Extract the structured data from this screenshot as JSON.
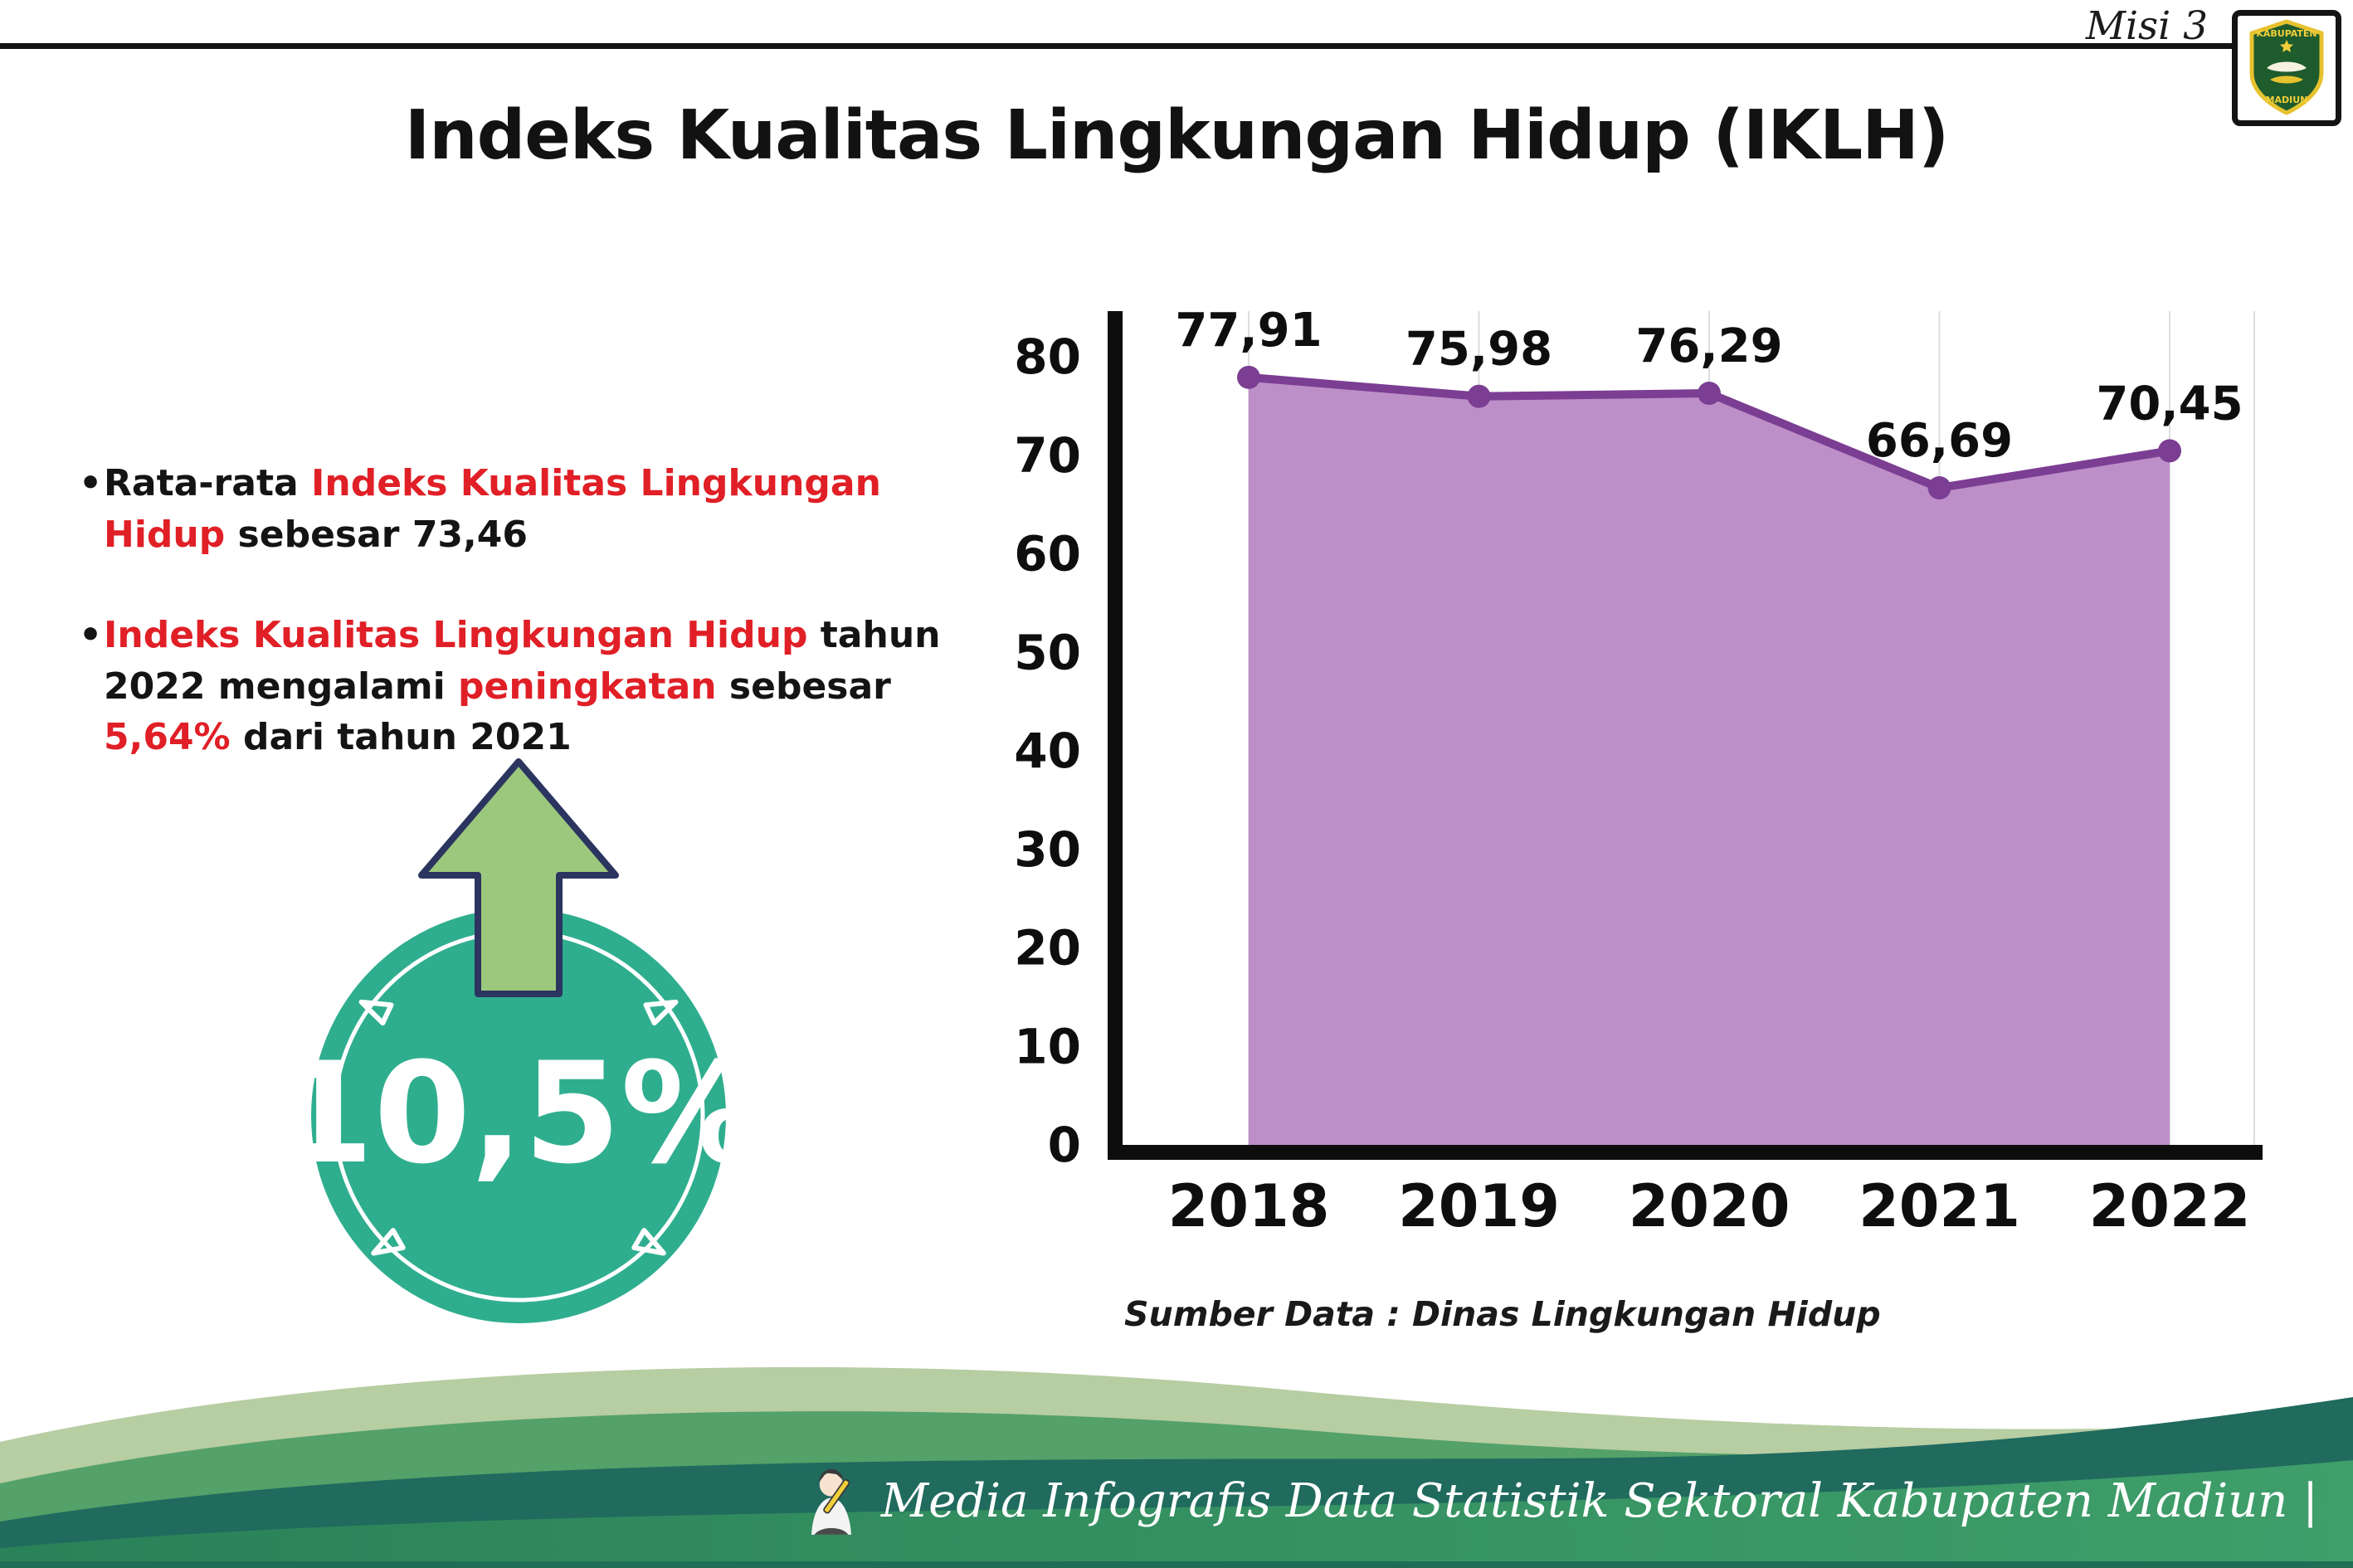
{
  "header": {
    "misi_label": "Misi 3",
    "logo": {
      "region_top": "KABUPATEN",
      "region_bottom": "MADIUN"
    }
  },
  "title": "Indeks Kualitas Lingkungan Hidup (IKLH)",
  "bullets": {
    "first": {
      "pre": "Rata-rata ",
      "highlight": "Indeks Kualitas Lingkungan Hidup",
      "post": " sebesar 73,46"
    },
    "second": {
      "h1": "Indeks Kualitas Lingkungan Hidup",
      "t1": " tahun 2022 mengalami ",
      "h2": "peningkatan",
      "t2": " sebesar ",
      "h3": "5,64%",
      "t3": " dari tahun 2021"
    }
  },
  "badge": {
    "value": "10,5%",
    "icon": "up-arrow-icon",
    "circle_color": "#2fae8f",
    "arrow_color": "#9cc87d"
  },
  "chart_data": {
    "type": "area",
    "title": "Indeks Kualitas Lingkungan Hidup (IKLH)",
    "categories": [
      "2018",
      "2019",
      "2020",
      "2021",
      "2022"
    ],
    "values": [
      77.91,
      75.98,
      76.29,
      66.69,
      70.45
    ],
    "value_labels": [
      "77,91",
      "75,98",
      "76,29",
      "66,69",
      "70,45"
    ],
    "xlabel": "",
    "ylabel": "",
    "ylim": [
      0,
      80
    ],
    "yticks": [
      0,
      10,
      20,
      30,
      40,
      50,
      60,
      70,
      80
    ],
    "grid": true,
    "legend": false,
    "colors": {
      "area": "#bd8fc9",
      "line": "#7b3e92",
      "point": "#7b3e92"
    }
  },
  "chart_source": "Sumber Data : Dinas Lingkungan Hidup",
  "footer": {
    "text": "Media Infografis Data Statistik Sektoral Kabupaten Madiun |",
    "colors": {
      "band_light": "#b7cda2",
      "band_mid": "#54a169",
      "band_teal": "#206a5e",
      "band_main_left": "#2a8258",
      "band_main_right": "#3f9e6a"
    }
  },
  "accent": {
    "red": "#e01f26"
  }
}
